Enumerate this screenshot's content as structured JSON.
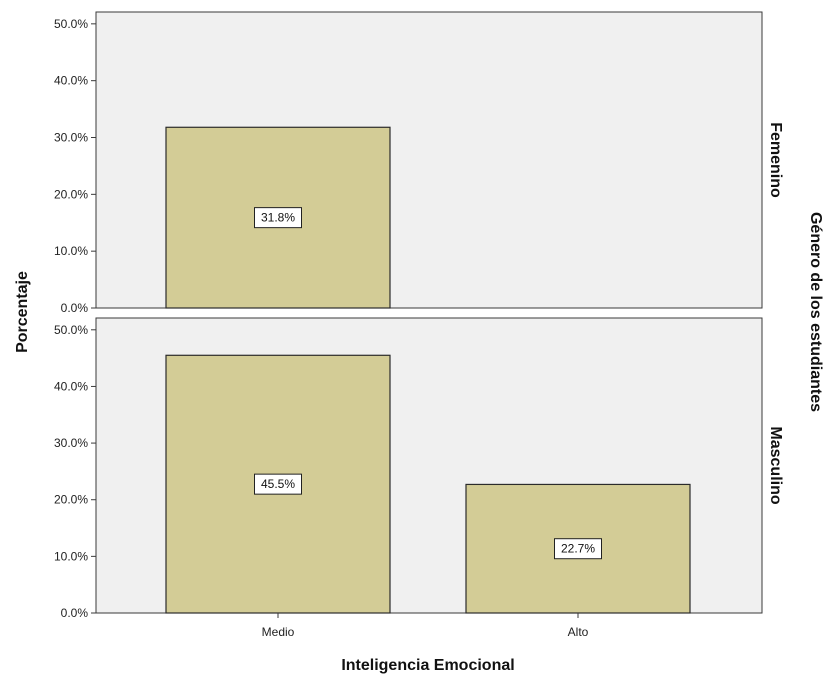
{
  "chart_data": {
    "type": "bar",
    "xlabel": "Inteligencia Emocional",
    "ylabel": "Porcentaje",
    "facet_label": "Género de los estudiantes",
    "categories": [
      "Medio",
      "Alto"
    ],
    "y_ticks": [
      "0.0%",
      "10.0%",
      "20.0%",
      "30.0%",
      "40.0%",
      "50.0%"
    ],
    "ylim": [
      0,
      50
    ],
    "grid": false,
    "colors": {
      "bar": "#d3cc96",
      "bar_edge": "#2b2b2b",
      "panel_bg": "#f0f0f0"
    },
    "panels": [
      {
        "name": "Femenino",
        "values": [
          31.8,
          null
        ],
        "labels": [
          "31.8%",
          ""
        ]
      },
      {
        "name": "Masculino",
        "values": [
          45.5,
          22.7
        ],
        "labels": [
          "45.5%",
          "22.7%"
        ]
      }
    ]
  }
}
